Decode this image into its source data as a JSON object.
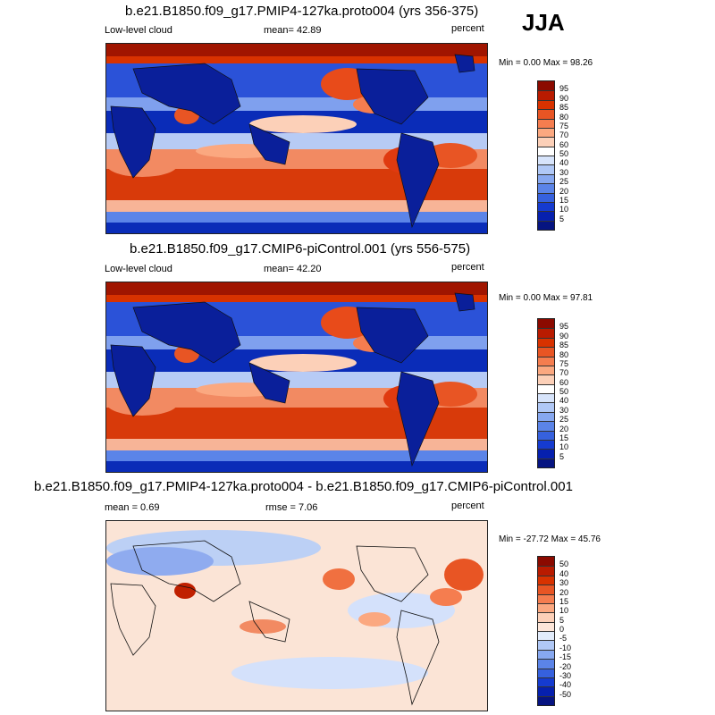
{
  "season": "JJA",
  "panels": [
    {
      "title": "b.e21.B1850.f09_g17.PMIP4-127ka.proto004 (yrs 356-375)",
      "left_label": "Low-level cloud",
      "center_label": "mean=  42.89",
      "right_label": "percent",
      "minmax": "Min =  0.00 Max =  98.26",
      "palette": "full",
      "colorbar_labels": [
        "95",
        "90",
        "85",
        "80",
        "75",
        "70",
        "60",
        "50",
        "40",
        "30",
        "25",
        "20",
        "15",
        "10",
        "5"
      ],
      "colorbar_colors": [
        "#8b0a00",
        "#b91b00",
        "#d83200",
        "#e85524",
        "#f57d4f",
        "#fba880",
        "#fcd0b8",
        "#ffffff",
        "#d7e4fb",
        "#b0c8f6",
        "#87a8f0",
        "#5b84e8",
        "#3661de",
        "#153bd0",
        "#0620ae",
        "#061481"
      ]
    },
    {
      "title": "b.e21.B1850.f09_g17.CMIP6-piControl.001 (yrs 556-575)",
      "left_label": "Low-level cloud",
      "center_label": "mean=  42.20",
      "right_label": "percent",
      "minmax": "Min =  0.00 Max =  97.81",
      "palette": "full",
      "colorbar_labels": [
        "95",
        "90",
        "85",
        "80",
        "75",
        "70",
        "60",
        "50",
        "40",
        "30",
        "25",
        "20",
        "15",
        "10",
        "5"
      ],
      "colorbar_colors": [
        "#8b0a00",
        "#b91b00",
        "#d83200",
        "#e85524",
        "#f57d4f",
        "#fba880",
        "#fcd0b8",
        "#ffffff",
        "#d7e4fb",
        "#b0c8f6",
        "#87a8f0",
        "#5b84e8",
        "#3661de",
        "#153bd0",
        "#0620ae",
        "#061481"
      ]
    },
    {
      "title": "b.e21.B1850.f09_g17.PMIP4-127ka.proto004 - b.e21.B1850.f09_g17.CMIP6-piControl.001",
      "left_label": "mean =   0.69",
      "center_label": "rmse =   7.06",
      "right_label": "percent",
      "minmax": "Min = -27.72 Max =  45.76",
      "palette": "diff",
      "colorbar_labels": [
        "50",
        "40",
        "30",
        "20",
        "15",
        "10",
        "5",
        "0",
        "-5",
        "-10",
        "-15",
        "-20",
        "-30",
        "-40",
        "-50"
      ],
      "colorbar_colors": [
        "#8b0a00",
        "#b91b00",
        "#d83200",
        "#e85524",
        "#f57d4f",
        "#fba880",
        "#fcd0b8",
        "#fde6d9",
        "#e2ecfb",
        "#b0c8f6",
        "#87a8f0",
        "#5b84e8",
        "#3661de",
        "#153bd0",
        "#0620ae",
        "#061481"
      ]
    }
  ]
}
